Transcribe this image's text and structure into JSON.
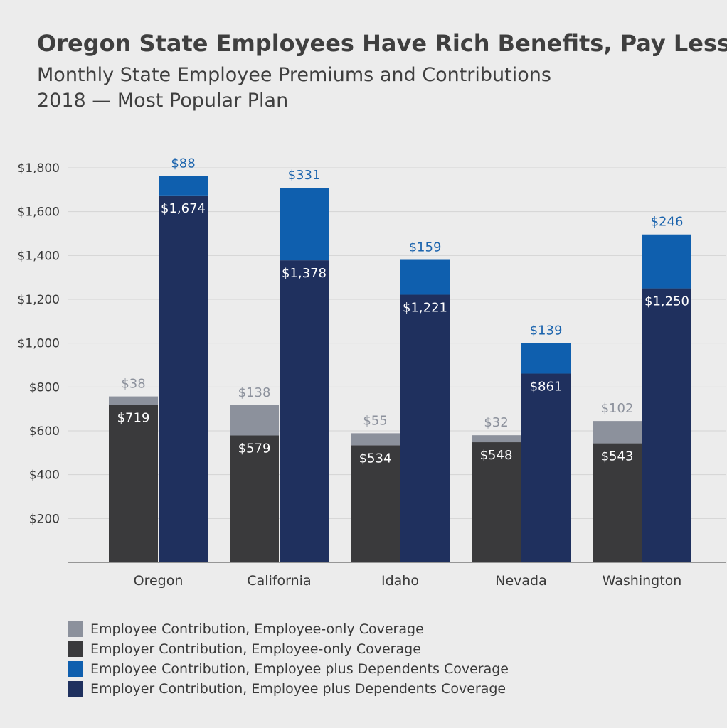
{
  "title": "Oregon State Employees Have Rich Benefits, Pay Less",
  "subtitle": [
    "Monthly State Employee Premiums and Contributions",
    "2018 — Most Popular Plan"
  ],
  "colors": {
    "employee_only_employee": "#8c919c",
    "employee_only_employer": "#3a3a3c",
    "dependents_employee": "#0f5fae",
    "dependents_employer": "#1f305e",
    "top_label_gray": "#8c919c",
    "top_label_blue": "#1a63ad"
  },
  "chart_data": {
    "type": "bar",
    "stacked": true,
    "grouped": true,
    "categories": [
      "Oregon",
      "California",
      "Idaho",
      "Nevada",
      "Washington"
    ],
    "ylim": [
      0,
      1800
    ],
    "yticks": [
      200,
      400,
      600,
      800,
      1000,
      1200,
      1400,
      1600,
      1800
    ],
    "ytick_labels": [
      "$200",
      "$400",
      "$600",
      "$800",
      "$1,000",
      "$1,200",
      "$1,400",
      "$1,600",
      "$1,800"
    ],
    "grid": true,
    "legend_position": "bottom-left",
    "groups": [
      {
        "stack": "employee-only",
        "series": [
          {
            "name": "Employer Contribution, Employee-only Coverage",
            "values": [
              719,
              579,
              534,
              548,
              543
            ],
            "labels": [
              "$719",
              "$579",
              "$534",
              "$548",
              "$543"
            ],
            "color_key": "employee_only_employer"
          },
          {
            "name": "Employee Contribution, Employee-only Coverage",
            "values": [
              38,
              138,
              55,
              32,
              102
            ],
            "labels": [
              "$38",
              "$138",
              "$55",
              "$32",
              "$102"
            ],
            "color_key": "employee_only_employee"
          }
        ]
      },
      {
        "stack": "dependents",
        "series": [
          {
            "name": "Employer Contribution, Employee plus Dependents Coverage",
            "values": [
              1674,
              1378,
              1221,
              861,
              1250
            ],
            "labels": [
              "$1,674",
              "$1,378",
              "$1,221",
              "$861",
              "$1,250"
            ],
            "color_key": "dependents_employer"
          },
          {
            "name": "Employee Contribution, Employee plus Dependents Coverage",
            "values": [
              88,
              331,
              159,
              139,
              246
            ],
            "labels": [
              "$88",
              "$331",
              "$159",
              "$139",
              "$246"
            ],
            "color_key": "dependents_employee"
          }
        ]
      }
    ]
  },
  "legend": [
    {
      "label": "Employee Contribution, Employee-only Coverage",
      "color_key": "employee_only_employee"
    },
    {
      "label": "Employer Contribution, Employee-only Coverage",
      "color_key": "employee_only_employer"
    },
    {
      "label": "Employee Contribution, Employee plus Dependents Coverage",
      "color_key": "dependents_employee"
    },
    {
      "label": "Employer Contribution, Employee plus Dependents Coverage",
      "color_key": "dependents_employer"
    }
  ]
}
